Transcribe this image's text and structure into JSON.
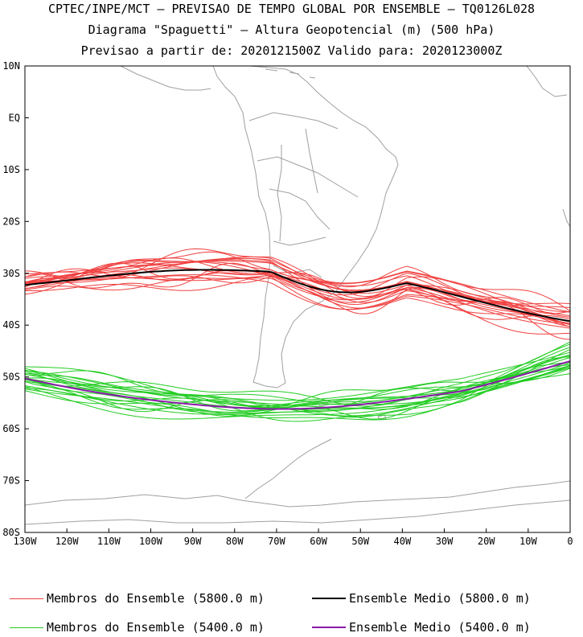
{
  "header": {
    "line1": "CPTEC/INPE/MCT – PREVISAO DE TEMPO GLOBAL POR ENSEMBLE – TQ0126L028",
    "line2": "Diagrama \"Spaguetti\" – Altura Geopotencial (m) (500 hPa)",
    "line3": "Previsao a partir de: 2020121500Z  Valido para: 2020123000Z"
  },
  "map": {
    "lon_ticks": [
      "130W",
      "120W",
      "110W",
      "100W",
      "90W",
      "80W",
      "70W",
      "60W",
      "50W",
      "40W",
      "30W",
      "20W",
      "10W",
      "0"
    ],
    "lat_ticks": [
      "10N",
      "EQ",
      "10S",
      "20S",
      "30S",
      "40S",
      "50S",
      "60S",
      "70S",
      "80S"
    ],
    "colors": {
      "members_5800": "#f04040",
      "mean_5800": "#000000",
      "members_5400": "#22cc22",
      "mean_5400": "#8a1aa8",
      "coast": "#a0a0a0"
    }
  },
  "legend": {
    "members_5800": "Membros do Ensemble (5800.0 m)",
    "mean_5800": "Ensemble Medio (5800.0 m)",
    "members_5400": "Membros do Ensemble (5400.0 m)",
    "mean_5400": "Ensemble Medio (5400.0 m)"
  }
}
